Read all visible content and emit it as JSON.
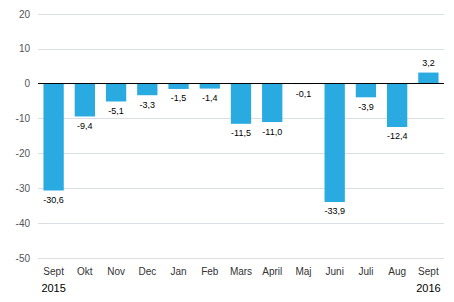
{
  "chart_data": {
    "type": "bar",
    "categories": [
      "Sept",
      "Okt",
      "Nov",
      "Dec",
      "Jan",
      "Feb",
      "Mars",
      "April",
      "Maj",
      "Juni",
      "Juli",
      "Aug",
      "Sept"
    ],
    "values": [
      -30.6,
      -9.4,
      -5.1,
      -3.3,
      -1.5,
      -1.4,
      -11.5,
      -11.0,
      -0.1,
      -33.9,
      -3.9,
      -12.4,
      3.2
    ],
    "value_labels": [
      "-30,6",
      "-9,4",
      "-5,1",
      "-3,3",
      "-1,5",
      "-1,4",
      "-11,5",
      "-11,0",
      "-0,1",
      "-33,9",
      "-3,9",
      "-12,4",
      "3,2"
    ],
    "data_labels": true,
    "color": "#29abe2",
    "annotations": [
      "2015",
      "2016"
    ],
    "ylim": [
      -50,
      20
    ],
    "yticks": [
      -50,
      -40,
      -30,
      -20,
      -10,
      0,
      10,
      20
    ],
    "grid": true
  }
}
